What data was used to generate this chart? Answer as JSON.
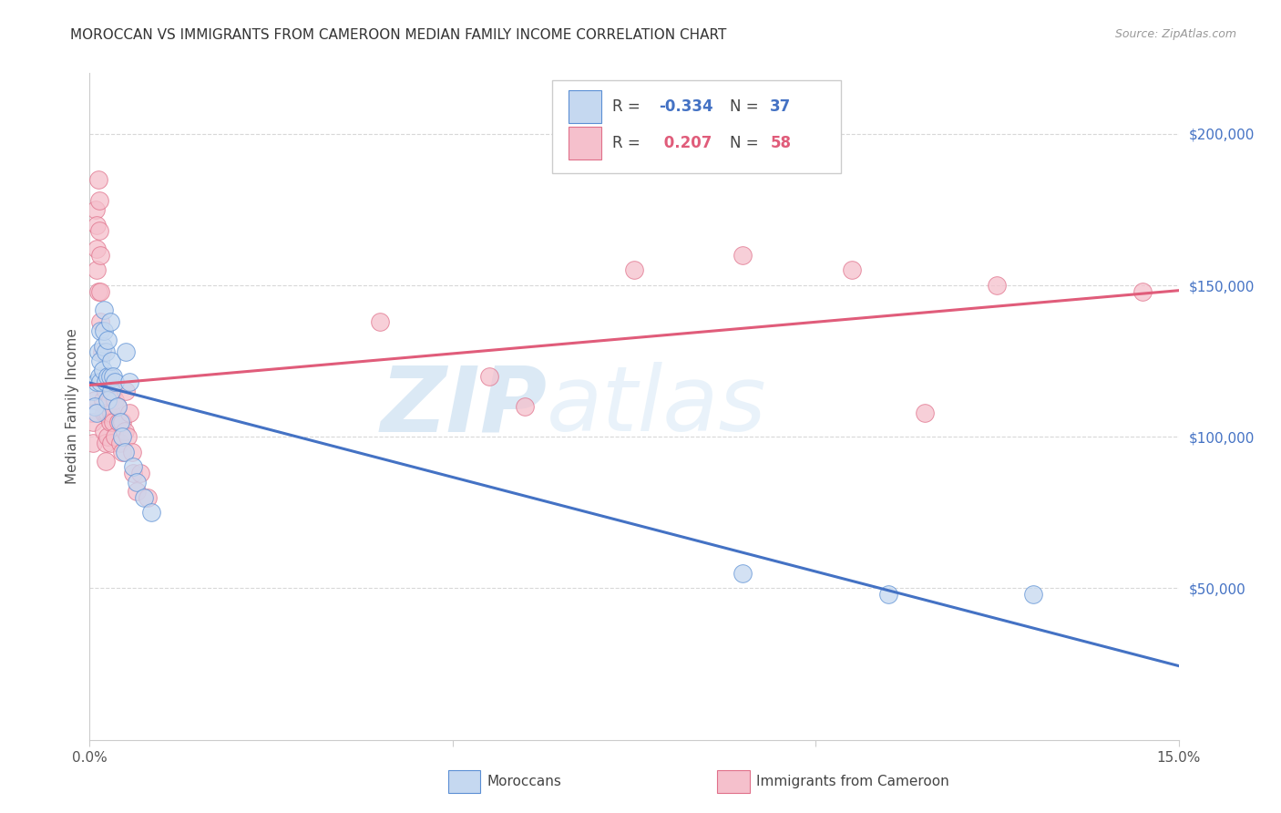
{
  "title": "MOROCCAN VS IMMIGRANTS FROM CAMEROON MEDIAN FAMILY INCOME CORRELATION CHART",
  "source": "Source: ZipAtlas.com",
  "ylabel": "Median Family Income",
  "xlim": [
    0,
    0.15
  ],
  "ylim": [
    0,
    220000
  ],
  "xticks": [
    0.0,
    0.05,
    0.1,
    0.15
  ],
  "xtick_labels": [
    "0.0%",
    "",
    "",
    "15.0%"
  ],
  "yticks_right": [
    50000,
    100000,
    150000,
    200000
  ],
  "ytick_labels_right": [
    "$50,000",
    "$100,000",
    "$150,000",
    "$200,000"
  ],
  "blue_fill": "#c5d8f0",
  "pink_fill": "#f5c0cc",
  "blue_edge": "#5b8fd4",
  "pink_edge": "#e0708a",
  "blue_line_color": "#4472c4",
  "pink_line_color": "#e05c7a",
  "blue_R": -0.334,
  "blue_N": 37,
  "pink_R": 0.207,
  "pink_N": 58,
  "watermark_zip": "ZIP",
  "watermark_atlas": "atlas",
  "legend_label_blue": "Moroccans",
  "legend_label_pink": "Immigrants from Cameroon",
  "blue_scatter": [
    [
      0.0005,
      115000
    ],
    [
      0.0007,
      110000
    ],
    [
      0.001,
      118000
    ],
    [
      0.001,
      108000
    ],
    [
      0.0012,
      128000
    ],
    [
      0.0013,
      120000
    ],
    [
      0.0015,
      135000
    ],
    [
      0.0015,
      125000
    ],
    [
      0.0015,
      118000
    ],
    [
      0.0018,
      130000
    ],
    [
      0.0018,
      122000
    ],
    [
      0.002,
      142000
    ],
    [
      0.002,
      135000
    ],
    [
      0.0022,
      128000
    ],
    [
      0.0022,
      118000
    ],
    [
      0.0025,
      132000
    ],
    [
      0.0025,
      120000
    ],
    [
      0.0025,
      112000
    ],
    [
      0.0028,
      138000
    ],
    [
      0.0028,
      120000
    ],
    [
      0.003,
      125000
    ],
    [
      0.003,
      115000
    ],
    [
      0.0032,
      120000
    ],
    [
      0.0035,
      118000
    ],
    [
      0.0038,
      110000
    ],
    [
      0.0042,
      105000
    ],
    [
      0.0045,
      100000
    ],
    [
      0.0048,
      95000
    ],
    [
      0.005,
      128000
    ],
    [
      0.0055,
      118000
    ],
    [
      0.006,
      90000
    ],
    [
      0.0065,
      85000
    ],
    [
      0.0075,
      80000
    ],
    [
      0.0085,
      75000
    ],
    [
      0.09,
      55000
    ],
    [
      0.11,
      48000
    ],
    [
      0.13,
      48000
    ]
  ],
  "pink_scatter": [
    [
      0.0003,
      108000
    ],
    [
      0.0005,
      105000
    ],
    [
      0.0005,
      98000
    ],
    [
      0.0007,
      112000
    ],
    [
      0.0008,
      175000
    ],
    [
      0.001,
      170000
    ],
    [
      0.001,
      162000
    ],
    [
      0.001,
      155000
    ],
    [
      0.0012,
      148000
    ],
    [
      0.0012,
      185000
    ],
    [
      0.0013,
      178000
    ],
    [
      0.0013,
      168000
    ],
    [
      0.0015,
      160000
    ],
    [
      0.0015,
      148000
    ],
    [
      0.0015,
      138000
    ],
    [
      0.0017,
      128000
    ],
    [
      0.0018,
      118000
    ],
    [
      0.0018,
      112000
    ],
    [
      0.002,
      108000
    ],
    [
      0.002,
      102000
    ],
    [
      0.0022,
      115000
    ],
    [
      0.0022,
      108000
    ],
    [
      0.0022,
      98000
    ],
    [
      0.0022,
      92000
    ],
    [
      0.0025,
      118000
    ],
    [
      0.0025,
      108000
    ],
    [
      0.0025,
      100000
    ],
    [
      0.0028,
      112000
    ],
    [
      0.0028,
      105000
    ],
    [
      0.003,
      108000
    ],
    [
      0.003,
      98000
    ],
    [
      0.0032,
      115000
    ],
    [
      0.0032,
      105000
    ],
    [
      0.0035,
      112000
    ],
    [
      0.0035,
      100000
    ],
    [
      0.0038,
      110000
    ],
    [
      0.004,
      105000
    ],
    [
      0.0042,
      98000
    ],
    [
      0.0045,
      105000
    ],
    [
      0.0045,
      95000
    ],
    [
      0.0048,
      102000
    ],
    [
      0.005,
      115000
    ],
    [
      0.0052,
      100000
    ],
    [
      0.0055,
      108000
    ],
    [
      0.0058,
      95000
    ],
    [
      0.006,
      88000
    ],
    [
      0.0065,
      82000
    ],
    [
      0.007,
      88000
    ],
    [
      0.008,
      80000
    ],
    [
      0.04,
      138000
    ],
    [
      0.055,
      120000
    ],
    [
      0.06,
      110000
    ],
    [
      0.075,
      155000
    ],
    [
      0.09,
      160000
    ],
    [
      0.105,
      155000
    ],
    [
      0.115,
      108000
    ],
    [
      0.125,
      150000
    ],
    [
      0.145,
      148000
    ]
  ],
  "grid_color": "#d8d8d8",
  "background_color": "#ffffff",
  "title_fontsize": 11,
  "axis_label_fontsize": 11,
  "tick_fontsize": 11
}
